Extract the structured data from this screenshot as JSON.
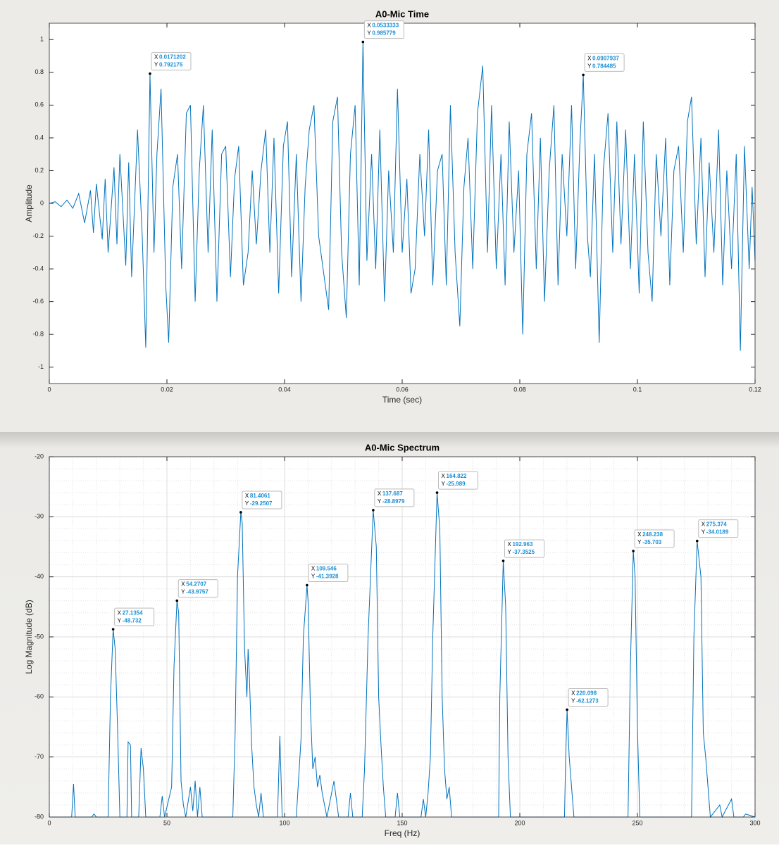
{
  "chart_data": [
    {
      "type": "line",
      "title": "A0-Mic Time",
      "xlabel": "Time (sec)",
      "ylabel": "Amplitude",
      "color": "#0072bd",
      "grid": false,
      "xlim": [
        0,
        0.12
      ],
      "xticks": [
        0,
        0.02,
        0.04,
        0.06,
        0.08,
        0.1,
        0.12
      ],
      "ylim": [
        -1.1,
        1.1
      ],
      "yticks": [
        -1,
        -0.8,
        -0.6,
        -0.4,
        -0.2,
        0,
        0.2,
        0.4,
        0.6,
        0.8,
        1
      ],
      "x": [
        0,
        0.001,
        0.002,
        0.003,
        0.004,
        0.005,
        0.006,
        0.007,
        0.0075,
        0.008,
        0.009,
        0.0095,
        0.01,
        0.011,
        0.0115,
        0.012,
        0.013,
        0.0135,
        0.014,
        0.015,
        0.0158,
        0.0164,
        0.0171202,
        0.0178,
        0.0183,
        0.019,
        0.0198,
        0.0203,
        0.021,
        0.0218,
        0.0225,
        0.0233,
        0.024,
        0.0248,
        0.0255,
        0.0262,
        0.027,
        0.0277,
        0.0285,
        0.0293,
        0.03,
        0.0308,
        0.0315,
        0.0322,
        0.033,
        0.0338,
        0.0345,
        0.0352,
        0.036,
        0.0368,
        0.0375,
        0.0382,
        0.039,
        0.0398,
        0.0405,
        0.0412,
        0.042,
        0.0428,
        0.0435,
        0.0442,
        0.045,
        0.0458,
        0.0475,
        0.0482,
        0.049,
        0.0497,
        0.0505,
        0.0512,
        0.052,
        0.0527,
        0.0533333,
        0.054,
        0.0548,
        0.0555,
        0.0562,
        0.057,
        0.0577,
        0.0585,
        0.0592,
        0.06,
        0.0608,
        0.0615,
        0.0622,
        0.063,
        0.0638,
        0.0645,
        0.0652,
        0.066,
        0.0668,
        0.0675,
        0.0682,
        0.069,
        0.0698,
        0.0705,
        0.0712,
        0.072,
        0.0728,
        0.0737,
        0.0745,
        0.0752,
        0.076,
        0.0768,
        0.0775,
        0.0782,
        0.079,
        0.0798,
        0.0805,
        0.0812,
        0.082,
        0.0828,
        0.0835,
        0.0842,
        0.085,
        0.0858,
        0.0865,
        0.0872,
        0.088,
        0.0888,
        0.0895,
        0.0902,
        0.0907937,
        0.0915,
        0.092,
        0.0927,
        0.0935,
        0.0942,
        0.095,
        0.0958,
        0.0965,
        0.0972,
        0.098,
        0.0988,
        0.0995,
        0.1003,
        0.101,
        0.1018,
        0.1025,
        0.1032,
        0.104,
        0.1048,
        0.1055,
        0.1062,
        0.107,
        0.1078,
        0.1085,
        0.1092,
        0.11,
        0.1108,
        0.1115,
        0.1122,
        0.113,
        0.1138,
        0.1145,
        0.1152,
        0.116,
        0.1168,
        0.1175,
        0.1182,
        0.119,
        0.1195,
        0.12
      ],
      "values": [
        0,
        0.01,
        -0.02,
        0.02,
        -0.03,
        0.06,
        -0.12,
        0.08,
        -0.18,
        0.12,
        -0.22,
        0.15,
        -0.3,
        0.22,
        -0.25,
        0.3,
        -0.38,
        0.25,
        -0.45,
        0.45,
        -0.2,
        -0.88,
        0.792175,
        -0.3,
        0.3,
        0.7,
        -0.5,
        -0.85,
        0.1,
        0.3,
        -0.4,
        0.55,
        0.6,
        -0.6,
        0.2,
        0.6,
        -0.3,
        0.45,
        -0.6,
        0.3,
        0.35,
        -0.45,
        0.15,
        0.35,
        -0.5,
        -0.3,
        0.2,
        -0.25,
        0.2,
        0.45,
        -0.3,
        0.4,
        -0.55,
        0.35,
        0.5,
        -0.45,
        0.3,
        -0.6,
        0.1,
        0.45,
        0.6,
        -0.2,
        -0.65,
        0.5,
        0.65,
        -0.3,
        -0.7,
        0.3,
        0.6,
        -0.5,
        0.985779,
        -0.35,
        0.3,
        -0.4,
        0.45,
        -0.6,
        0.2,
        -0.3,
        0.7,
        -0.3,
        0.15,
        -0.55,
        -0.4,
        0.3,
        -0.2,
        0.45,
        -0.5,
        0.2,
        0.3,
        -0.5,
        0.6,
        -0.3,
        -0.75,
        0.1,
        0.4,
        -0.4,
        0.55,
        0.84,
        -0.3,
        0.6,
        -0.4,
        0.3,
        -0.5,
        0.5,
        -0.3,
        0.2,
        -0.8,
        0.3,
        0.55,
        -0.4,
        0.4,
        -0.6,
        0.2,
        0.6,
        -0.5,
        0.3,
        -0.2,
        0.6,
        -0.4,
        0.35,
        0.784485,
        -0.2,
        -0.45,
        0.3,
        -0.85,
        0.2,
        0.55,
        -0.3,
        0.5,
        -0.25,
        0.45,
        -0.4,
        0.3,
        -0.55,
        0.5,
        -0.3,
        -0.6,
        0.3,
        -0.2,
        0.4,
        -0.5,
        0.2,
        0.35,
        -0.3,
        0.5,
        0.65,
        -0.25,
        0.4,
        -0.45,
        0.25,
        -0.3,
        0.45,
        -0.5,
        0.2,
        -0.4,
        0.3,
        -0.9,
        0.35,
        -0.4,
        0.1,
        -0.35
      ],
      "datatip_labels": [
        "X",
        "Y"
      ],
      "datatips": [
        {
          "x": 0.0171202,
          "y": 0.792175
        },
        {
          "x": 0.0533333,
          "y": 0.985779
        },
        {
          "x": 0.0907937,
          "y": 0.784485
        }
      ]
    },
    {
      "type": "line",
      "title": "A0-Mic Spectrum",
      "xlabel": "Freq (Hz)",
      "ylabel": "Log Magnitude (dB)",
      "color": "#0072bd",
      "grid": true,
      "minor_grid": true,
      "xlim": [
        0,
        300
      ],
      "xticks": [
        0,
        50,
        100,
        150,
        200,
        250,
        300
      ],
      "ylim": [
        -80,
        -20
      ],
      "yticks": [
        -80,
        -70,
        -60,
        -50,
        -40,
        -30,
        -20
      ],
      "x": [
        0,
        9.5,
        10.3,
        11,
        18,
        19,
        20,
        25,
        26,
        27.1354,
        28,
        29,
        30,
        33,
        33.5,
        34.5,
        35,
        38,
        39,
        40,
        41,
        47,
        48,
        49,
        52,
        53,
        54.2707,
        55,
        56,
        57,
        58,
        60,
        61,
        62,
        63,
        64,
        65,
        78,
        79,
        80,
        81.4061,
        82,
        83,
        84,
        84.5,
        85,
        86,
        87,
        88,
        89,
        90,
        91,
        97,
        98,
        99,
        105,
        107,
        108,
        109.546,
        110,
        111,
        112,
        113,
        114,
        115,
        116,
        118,
        121,
        123,
        127,
        128,
        129,
        133,
        134,
        135.5,
        137.687,
        139,
        140,
        141,
        142,
        143,
        147,
        148,
        149,
        158,
        159,
        160,
        161,
        162,
        163,
        164.822,
        166,
        167,
        168,
        169,
        170,
        171,
        191,
        191.5,
        192.963,
        194,
        195,
        196,
        219,
        219.5,
        220.098,
        221,
        222,
        223,
        246,
        247,
        248.238,
        249,
        250,
        251,
        273,
        274,
        275.374,
        277,
        278,
        279,
        280,
        281,
        285,
        286,
        290,
        291,
        295,
        296,
        300
      ],
      "values": [
        -80,
        -80,
        -74.5,
        -80,
        -80,
        -79.5,
        -80,
        -80,
        -60,
        -48.732,
        -52,
        -65,
        -80,
        -80,
        -67.5,
        -68,
        -80,
        -80,
        -68.5,
        -72,
        -80,
        -80,
        -76.5,
        -80,
        -75,
        -55,
        -43.9757,
        -46,
        -74,
        -78,
        -80,
        -75,
        -79,
        -74,
        -80,
        -75,
        -80,
        -80,
        -66,
        -40,
        -29.2507,
        -31,
        -52,
        -60,
        -52,
        -56,
        -68,
        -75,
        -78,
        -80,
        -76,
        -80,
        -80,
        -66.5,
        -80,
        -80,
        -67,
        -50,
        -41.3928,
        -44,
        -62,
        -72,
        -70,
        -75,
        -73,
        -76,
        -80,
        -74,
        -80,
        -80,
        -76,
        -80,
        -80,
        -72,
        -50,
        -28.8979,
        -35,
        -60,
        -68,
        -75,
        -80,
        -80,
        -76,
        -80,
        -80,
        -77,
        -80,
        -76,
        -70,
        -50,
        -25.989,
        -32,
        -60,
        -72,
        -77,
        -75,
        -80,
        -80,
        -60,
        -37.3525,
        -45,
        -70,
        -80,
        -80,
        -70,
        -62.1273,
        -70,
        -75,
        -80,
        -80,
        -55,
        -35.703,
        -40,
        -65,
        -80,
        -80,
        -50,
        -34.0189,
        -40,
        -66,
        -70,
        -75,
        -80,
        -78,
        -80,
        -77,
        -80,
        -80,
        -79.5,
        -80
      ],
      "datatip_labels": [
        "X",
        "Y"
      ],
      "datatips": [
        {
          "x": 27.1354,
          "y": -48.732
        },
        {
          "x": 54.2707,
          "y": -43.9757
        },
        {
          "x": 81.4061,
          "y": -29.2507
        },
        {
          "x": 109.546,
          "y": -41.3928
        },
        {
          "x": 137.687,
          "y": -28.8979
        },
        {
          "x": 164.822,
          "y": -25.989
        },
        {
          "x": 192.963,
          "y": -37.3525
        },
        {
          "x": 220.098,
          "y": -62.1273
        },
        {
          "x": 248.238,
          "y": -35.703
        },
        {
          "x": 275.374,
          "y": -34.0189
        }
      ]
    }
  ]
}
